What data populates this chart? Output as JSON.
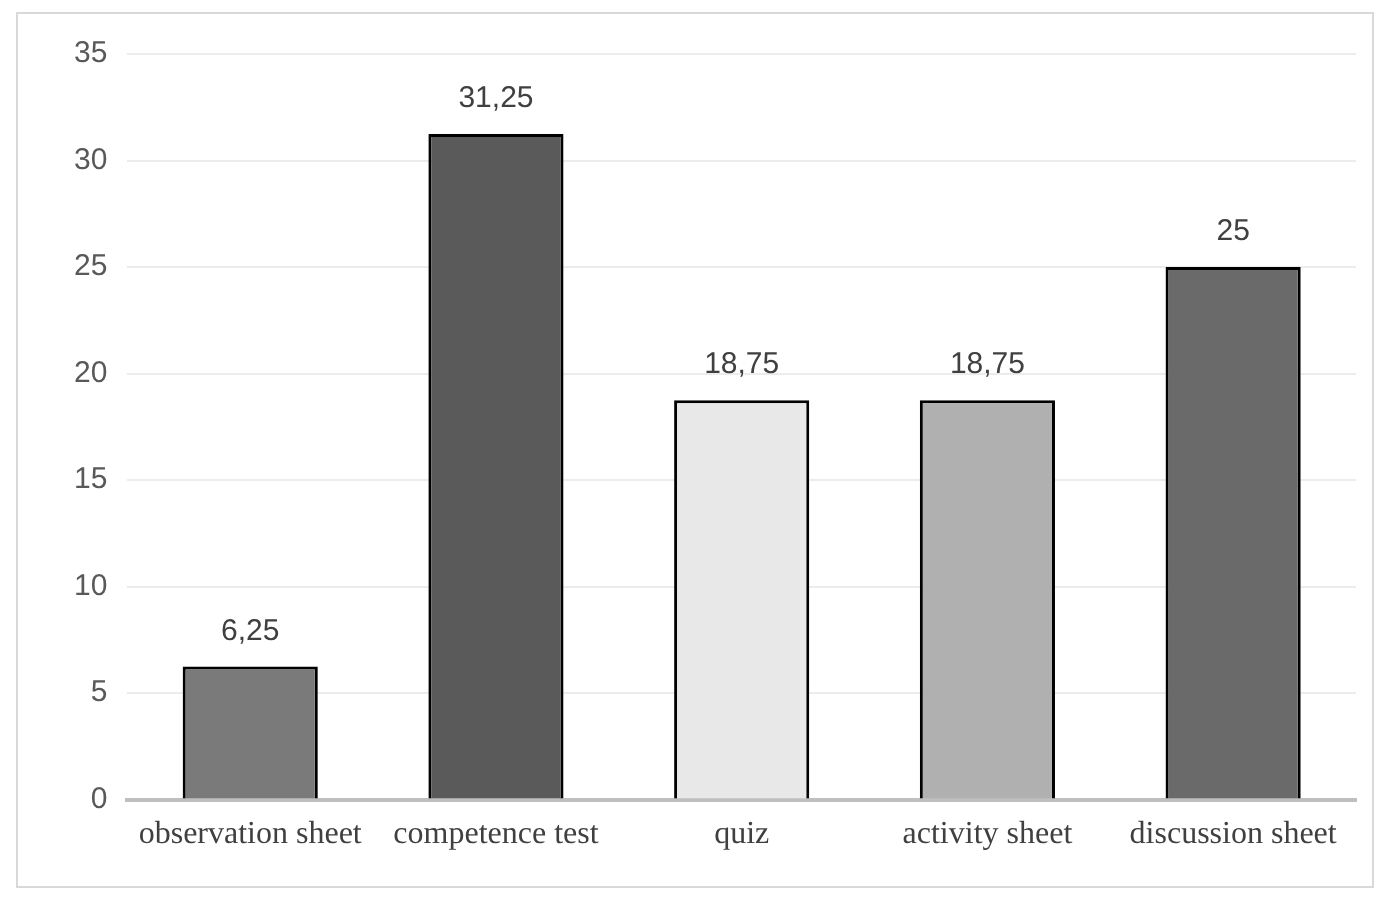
{
  "chart_data": {
    "type": "bar",
    "categories": [
      "observation sheet",
      "competence test",
      "quiz",
      "activity sheet",
      "discussion sheet"
    ],
    "values": [
      6.25,
      31.25,
      18.75,
      18.75,
      25
    ],
    "value_labels": [
      "6,25",
      "31,25",
      "18,75",
      "18,75",
      "25"
    ],
    "colors": [
      "#7a7a7a",
      "#5a5a5a",
      "#e8e8e8",
      "#b0b0b0",
      "#6a6a6a"
    ],
    "ylim": [
      0,
      35
    ],
    "yticks": [
      0,
      5,
      10,
      15,
      20,
      25,
      30,
      35
    ],
    "grid": "y",
    "legend": false
  }
}
